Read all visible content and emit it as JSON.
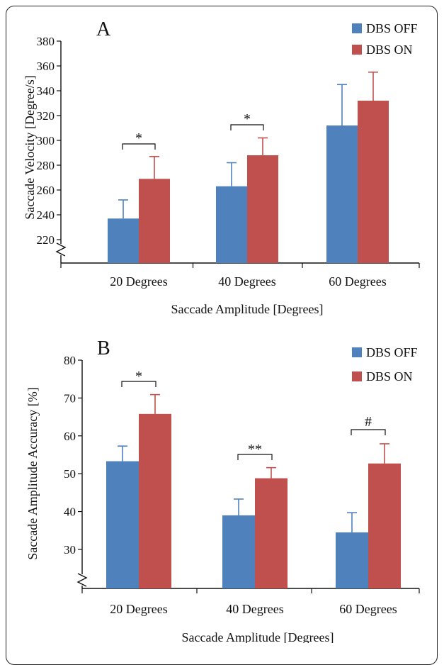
{
  "colors": {
    "DBS OFF": "#4f81bd",
    "DBS ON": "#c0504d",
    "axis": "#111111"
  },
  "chart_data": [
    {
      "type": "bar",
      "panel_label": "A",
      "categories": [
        "20 Degrees",
        "40 Degrees",
        "60 Degrees"
      ],
      "series": [
        {
          "name": "DBS OFF",
          "values": [
            237,
            263,
            312
          ],
          "errors": [
            15,
            19,
            33
          ]
        },
        {
          "name": "DBS ON",
          "values": [
            269,
            288,
            332
          ],
          "errors": [
            18,
            14,
            23
          ]
        }
      ],
      "xlabel": "Saccade Amplitude [Degrees]",
      "ylabel": "Saccade Velocity [Degree/s]",
      "yticks": [
        220,
        240,
        260,
        280,
        300,
        320,
        340,
        360,
        380
      ],
      "ylim": [
        208,
        380
      ],
      "axis_break": true,
      "legend": "top-right",
      "significance": [
        {
          "category": "20 Degrees",
          "label": "*"
        },
        {
          "category": "40 Degrees",
          "label": "*"
        }
      ]
    },
    {
      "type": "bar",
      "panel_label": "B",
      "categories": [
        "20 Degrees",
        "40 Degrees",
        "60 Degrees"
      ],
      "series": [
        {
          "name": "DBS OFF",
          "values": [
            53.3,
            39.0,
            34.5
          ],
          "errors": [
            4.0,
            4.3,
            5.2
          ]
        },
        {
          "name": "DBS ON",
          "values": [
            65.8,
            48.8,
            52.7
          ],
          "errors": [
            5.1,
            2.8,
            5.2
          ]
        }
      ],
      "xlabel": "Saccade Amplitude [Degrees]",
      "ylabel": "Saccade Amplitude Accuracy  [%]",
      "yticks": [
        30,
        40,
        50,
        60,
        70,
        80
      ],
      "ylim": [
        21,
        80
      ],
      "axis_break": true,
      "legend": "top-right",
      "significance": [
        {
          "category": "20 Degrees",
          "label": "*"
        },
        {
          "category": "40 Degrees",
          "label": "**"
        },
        {
          "category": "60 Degrees",
          "label": "#"
        }
      ]
    }
  ]
}
